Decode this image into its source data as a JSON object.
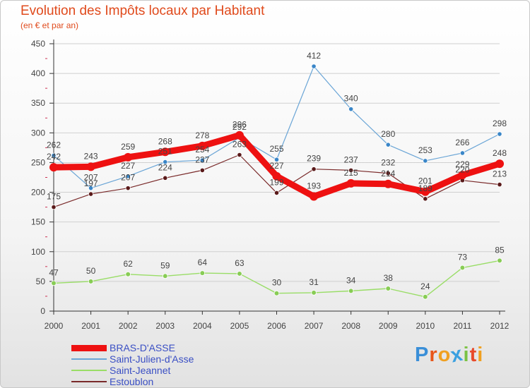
{
  "chart_data": {
    "type": "line",
    "title": "Evolution des Impôts locaux par Habitant",
    "subtitle": "(en € et par an)",
    "xlabel": "",
    "ylabel": "",
    "ylim": [
      0,
      450
    ],
    "yticks": [
      0,
      50,
      100,
      150,
      200,
      250,
      300,
      350,
      400,
      450
    ],
    "x": [
      "2000",
      "2001",
      "2002",
      "2003",
      "2004",
      "2005",
      "2006",
      "2007",
      "2008",
      "2009",
      "2010",
      "2011",
      "2012"
    ],
    "series": [
      {
        "name": "BRAS-D'ASSE",
        "color": "#ee1111",
        "values": [
          242,
          243,
          259,
          268,
          278,
          296,
          227,
          193,
          215,
          214,
          201,
          229,
          248
        ]
      },
      {
        "name": "Saint-Julien-d'Asse",
        "color": "#6aa5d6",
        "values": [
          262,
          207,
          227,
          251,
          254,
          292,
          255,
          412,
          340,
          280,
          253,
          266,
          298
        ]
      },
      {
        "name": "Saint-Jeannet",
        "color": "#99dd66",
        "values": [
          47,
          50,
          62,
          59,
          64,
          63,
          30,
          31,
          34,
          38,
          24,
          73,
          85
        ]
      },
      {
        "name": "Estoublon",
        "color": "#7a2a2a",
        "values": [
          175,
          197,
          207,
          224,
          237,
          263,
          199,
          239,
          237,
          232,
          189,
          220,
          213
        ]
      }
    ]
  },
  "logo": {
    "text": "Proxiti",
    "colors": [
      "#3a8fd8",
      "#e8561a",
      "#f0a020",
      "#3aa0e0",
      "#7bc243",
      "#e84a2a",
      "#f0a020"
    ]
  }
}
